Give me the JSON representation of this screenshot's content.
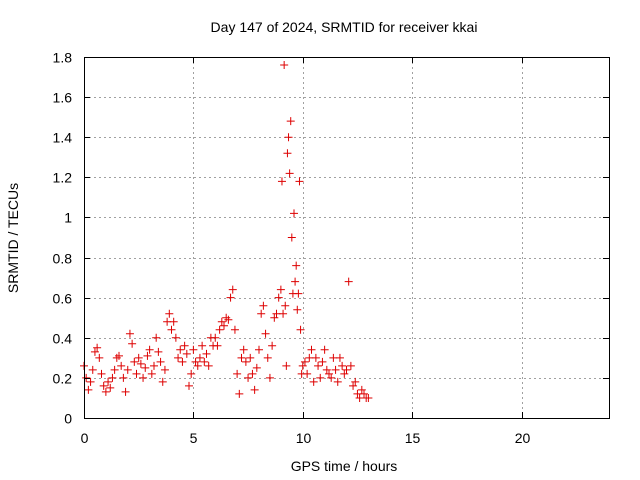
{
  "chart_data": {
    "type": "scatter",
    "title": "Day 147 of 2024, SRMTID for receiver kkai",
    "xlabel": "GPS time / hours",
    "ylabel": "SRMTID / TECUs",
    "xlim": [
      0,
      24
    ],
    "ylim": [
      0,
      1.8
    ],
    "xticks": [
      0,
      5,
      10,
      15,
      20
    ],
    "xtick_labels": [
      "0",
      "5",
      "10",
      "15",
      "20"
    ],
    "yticks": [
      0,
      0.2,
      0.4,
      0.6,
      0.8,
      1,
      1.2,
      1.4,
      1.6,
      1.8
    ],
    "ytick_labels": [
      "0",
      "0.2",
      "0.4",
      "0.6",
      "0.8",
      "1",
      "1.2",
      "1.4",
      "1.6",
      "1.8"
    ],
    "grid": true,
    "marker": "plus",
    "color": "#dd0000",
    "series": [
      {
        "name": "SRMTID",
        "x": [
          0.0,
          0.1,
          0.2,
          0.3,
          0.4,
          0.5,
          0.6,
          0.7,
          0.8,
          0.9,
          1.0,
          1.1,
          1.2,
          1.3,
          1.4,
          1.5,
          1.6,
          1.7,
          1.8,
          1.9,
          2.0,
          2.1,
          2.2,
          2.3,
          2.4,
          2.5,
          2.6,
          2.7,
          2.8,
          2.9,
          3.0,
          3.1,
          3.2,
          3.3,
          3.4,
          3.5,
          3.6,
          3.7,
          3.8,
          3.9,
          4.0,
          4.1,
          4.2,
          4.3,
          4.4,
          4.5,
          4.6,
          4.7,
          4.8,
          4.9,
          5.0,
          5.1,
          5.2,
          5.3,
          5.4,
          5.5,
          5.6,
          5.7,
          5.8,
          5.9,
          6.0,
          6.1,
          6.2,
          6.3,
          6.4,
          6.5,
          6.6,
          6.7,
          6.8,
          6.9,
          7.0,
          7.1,
          7.2,
          7.3,
          7.4,
          7.5,
          7.6,
          7.7,
          7.8,
          7.9,
          8.0,
          8.1,
          8.2,
          8.3,
          8.4,
          8.5,
          8.6,
          8.7,
          8.8,
          8.9,
          9.0,
          9.05,
          9.1,
          9.15,
          9.2,
          9.25,
          9.3,
          9.35,
          9.4,
          9.45,
          9.5,
          9.55,
          9.6,
          9.65,
          9.7,
          9.75,
          9.8,
          9.85,
          9.9,
          9.95,
          10.0,
          10.1,
          10.2,
          10.3,
          10.4,
          10.5,
          10.6,
          10.7,
          10.8,
          10.9,
          11.0,
          11.1,
          11.2,
          11.3,
          11.4,
          11.5,
          11.6,
          11.7,
          11.8,
          11.9,
          12.0,
          12.1,
          12.2,
          12.3,
          12.4,
          12.5,
          12.6,
          12.7,
          12.8,
          12.9,
          13.0
        ],
        "y": [
          0.26,
          0.2,
          0.14,
          0.18,
          0.24,
          0.33,
          0.35,
          0.3,
          0.22,
          0.16,
          0.13,
          0.18,
          0.15,
          0.2,
          0.24,
          0.3,
          0.31,
          0.26,
          0.2,
          0.13,
          0.24,
          0.42,
          0.37,
          0.28,
          0.22,
          0.3,
          0.27,
          0.2,
          0.25,
          0.31,
          0.34,
          0.22,
          0.26,
          0.4,
          0.33,
          0.28,
          0.18,
          0.24,
          0.48,
          0.52,
          0.44,
          0.48,
          0.4,
          0.3,
          0.34,
          0.28,
          0.36,
          0.32,
          0.16,
          0.22,
          0.34,
          0.28,
          0.26,
          0.3,
          0.36,
          0.28,
          0.32,
          0.26,
          0.4,
          0.36,
          0.4,
          0.36,
          0.44,
          0.48,
          0.46,
          0.5,
          0.49,
          0.6,
          0.64,
          0.44,
          0.22,
          0.12,
          0.3,
          0.34,
          0.28,
          0.2,
          0.3,
          0.22,
          0.14,
          0.25,
          0.34,
          0.52,
          0.56,
          0.42,
          0.3,
          0.2,
          0.36,
          0.5,
          0.52,
          0.6,
          0.64,
          1.18,
          0.52,
          1.76,
          0.56,
          0.26,
          1.32,
          1.4,
          1.22,
          1.48,
          0.9,
          0.62,
          1.02,
          0.68,
          0.76,
          0.54,
          0.62,
          1.18,
          0.44,
          0.22,
          0.26,
          0.28,
          0.22,
          0.3,
          0.34,
          0.18,
          0.3,
          0.26,
          0.2,
          0.28,
          0.34,
          0.24,
          0.22,
          0.2,
          0.3,
          0.24,
          0.18,
          0.3,
          0.26,
          0.22,
          0.24,
          0.68,
          0.26,
          0.16,
          0.18,
          0.12,
          0.1,
          0.14,
          0.12,
          0.1,
          0.1
        ]
      }
    ]
  }
}
